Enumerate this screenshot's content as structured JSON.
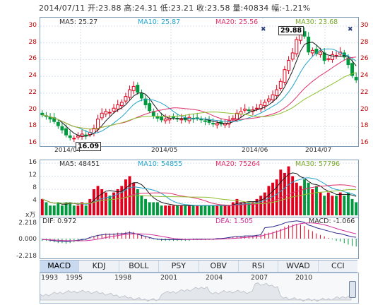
{
  "header": {
    "date": "2014/07/11",
    "open_label": "开:",
    "open": "23.88",
    "high_label": "高:",
    "high": "24.31",
    "low_label": "低:",
    "low": "23.21",
    "close_label": "收:",
    "close": "23.58",
    "volume_label": "量:",
    "volume": "40834",
    "change_label": "幅:",
    "change": "-1.21%"
  },
  "price_panel": {
    "ma5": "MA5: 25.27",
    "ma10": "MA10: 25.87",
    "ma20": "MA20: 25.56",
    "ma30": "MA30: 23.68",
    "high_callout": "29.88",
    "low_callout": "16.09",
    "y_ticks": [
      "30",
      "28",
      "26",
      "24",
      "22",
      "20",
      "18",
      "16"
    ],
    "x_ticks": [
      "2014/04",
      "2014/05",
      "2014/06",
      "2014/07"
    ],
    "colors": {
      "ma5": "#1a1a1a",
      "ma10": "#22a5c9",
      "ma20": "#e0306a",
      "ma30": "#8fbf2f",
      "up": "#e0001b",
      "down": "#009a3e"
    }
  },
  "volume_panel": {
    "ma5": "MA5: 48451",
    "ma10": "MA10: 54855",
    "ma20": "MA20: 75264",
    "ma30": "MA30: 57796",
    "unit": "x万",
    "y_ticks": [
      "16",
      "12",
      "8",
      "4"
    ]
  },
  "macd_panel": {
    "dif": "DIF: 0.972",
    "dea": "DEA: 1.505",
    "macd": "MACD: -1.066",
    "y_ticks": [
      "2.218",
      "0.000",
      "-2.218"
    ]
  },
  "tabs": [
    "MACD",
    "KDJ",
    "BOLL",
    "PSY",
    "OBV",
    "RSI",
    "WVAD",
    "CCI"
  ],
  "active_tab": "MACD",
  "overview_years": [
    "1993",
    "1995",
    "1998",
    "2001",
    "2004",
    "2007",
    "2010"
  ],
  "chart_data": {
    "type": "bar",
    "note_type": "candlestick",
    "ohlc_last": {
      "open": 23.88,
      "high": 24.31,
      "low": 23.21,
      "close": 23.58
    },
    "price_range": [
      16,
      30
    ],
    "close_series": [
      19.4,
      19.2,
      18.9,
      18.6,
      18.1,
      17.6,
      17.0,
      16.7,
      16.6,
      16.9,
      17.1,
      16.9,
      17.3,
      17.8,
      18.9,
      19.6,
      19.8,
      19.7,
      20.2,
      20.6,
      20.9,
      21.6,
      22.4,
      22.8,
      22.1,
      21.4,
      20.6,
      19.9,
      19.3,
      19.0,
      18.8,
      18.9,
      19.0,
      19.1,
      18.9,
      18.9,
      18.8,
      19.1,
      18.9,
      19.0,
      18.8,
      18.6,
      18.5,
      18.3,
      18.4,
      18.3,
      18.4,
      18.7,
      19.0,
      19.6,
      19.8,
      20.1,
      19.9,
      20.0,
      20.2,
      20.6,
      20.9,
      21.3,
      21.8,
      22.4,
      23.4,
      24.8,
      25.9,
      26.8,
      28.4,
      29.2,
      28.8,
      26.9,
      27.1,
      26.7,
      26.9,
      25.9,
      26.1,
      26.6,
      26.5,
      26.9,
      26.3,
      25.4,
      24.1,
      23.58
    ],
    "volume_series": [
      5,
      4,
      3,
      3,
      4,
      3,
      4,
      4,
      3,
      3,
      4,
      3,
      5,
      8,
      9,
      8,
      7,
      6,
      7,
      8,
      9,
      11,
      12,
      10,
      8,
      6,
      5,
      4,
      4,
      4,
      3,
      3,
      3,
      3,
      3,
      3,
      3,
      3,
      3,
      3,
      3,
      3,
      3,
      3,
      3,
      3,
      3,
      3,
      4,
      5,
      4,
      4,
      4,
      4,
      5,
      6,
      7,
      9,
      10,
      11,
      14,
      13,
      15,
      12,
      10,
      9,
      11,
      10,
      8,
      9,
      7,
      6,
      7,
      6,
      6,
      7,
      6,
      7,
      5,
      4
    ],
    "macd_hist": [
      -0.3,
      -0.3,
      -0.4,
      -0.5,
      -0.6,
      -0.6,
      -0.7,
      -0.6,
      -0.5,
      -0.4,
      -0.3,
      -0.2,
      0.1,
      0.3,
      0.5,
      0.6,
      0.7,
      0.7,
      0.7,
      0.8,
      0.8,
      0.9,
      1.0,
      0.9,
      0.7,
      0.5,
      0.3,
      0.1,
      -0.1,
      -0.2,
      -0.3,
      -0.3,
      -0.3,
      -0.3,
      -0.3,
      -0.3,
      -0.3,
      -0.3,
      -0.2,
      -0.2,
      -0.2,
      -0.2,
      -0.2,
      -0.2,
      -0.1,
      -0.1,
      0.0,
      0.1,
      0.2,
      0.3,
      0.3,
      0.4,
      0.4,
      0.4,
      0.5,
      0.6,
      0.7,
      0.8,
      0.9,
      1.1,
      1.3,
      1.6,
      1.8,
      1.9,
      2.0,
      1.9,
      1.7,
      1.2,
      1.0,
      0.7,
      0.5,
      0.3,
      0.1,
      -0.1,
      -0.3,
      -0.4,
      -0.6,
      -0.8,
      -1.0,
      -1.066
    ]
  }
}
